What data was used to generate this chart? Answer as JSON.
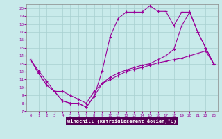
{
  "xlabel": "Windchill (Refroidissement éolien,°C)",
  "bg_color": "#c8eaea",
  "line_color": "#990099",
  "grid_color": "#a8d0d0",
  "xlim": [
    -0.5,
    23.5
  ],
  "ylim": [
    7,
    20.5
  ],
  "yticks": [
    7,
    8,
    9,
    10,
    11,
    12,
    13,
    14,
    15,
    16,
    17,
    18,
    19,
    20
  ],
  "xticks": [
    0,
    1,
    2,
    3,
    4,
    5,
    6,
    7,
    8,
    9,
    10,
    11,
    12,
    13,
    14,
    15,
    16,
    17,
    18,
    19,
    20,
    21,
    22,
    23
  ],
  "line1_x": [
    0,
    1,
    2,
    3,
    4,
    5,
    6,
    7,
    8,
    9,
    10,
    11,
    12,
    13,
    14,
    15,
    16,
    17,
    18,
    19,
    20,
    21,
    22,
    23
  ],
  "line1_y": [
    13.5,
    11.8,
    10.3,
    9.5,
    8.3,
    8.0,
    8.0,
    7.5,
    8.9,
    12.1,
    16.4,
    18.7,
    19.5,
    19.5,
    19.5,
    20.3,
    19.6,
    19.6,
    17.8,
    19.5,
    19.5,
    17.0,
    15.0,
    13.0
  ],
  "line2_x": [
    0,
    1,
    2,
    3,
    4,
    5,
    6,
    7,
    8,
    9,
    10,
    11,
    12,
    13,
    14,
    15,
    16,
    17,
    18,
    19,
    20,
    21,
    22,
    23
  ],
  "line2_y": [
    13.5,
    11.8,
    10.3,
    9.5,
    8.3,
    8.0,
    8.0,
    7.5,
    8.9,
    10.5,
    11.0,
    11.5,
    12.0,
    12.3,
    12.5,
    12.8,
    13.1,
    13.3,
    13.5,
    13.7,
    14.0,
    14.3,
    14.6,
    13.0
  ],
  "line3_x": [
    0,
    1,
    2,
    3,
    4,
    5,
    6,
    7,
    8,
    9,
    10,
    11,
    12,
    13,
    14,
    15,
    16,
    17,
    18,
    19,
    20,
    21,
    22,
    23
  ],
  "line3_y": [
    13.5,
    12.1,
    10.8,
    9.5,
    9.5,
    9.0,
    8.5,
    8.0,
    9.5,
    10.5,
    11.3,
    11.8,
    12.2,
    12.5,
    12.8,
    13.0,
    13.5,
    14.0,
    14.8,
    17.8,
    19.5,
    17.0,
    15.0,
    13.0
  ]
}
